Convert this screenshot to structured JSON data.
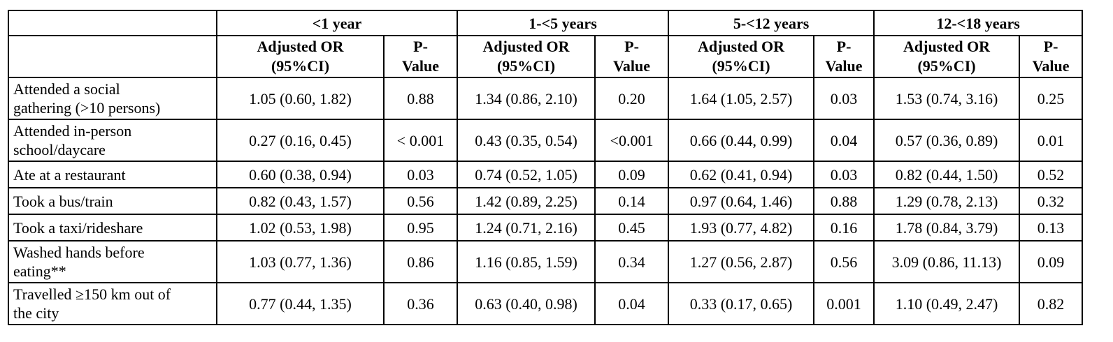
{
  "age_groups": [
    {
      "label": "<1 year"
    },
    {
      "label": "1-<5 years"
    },
    {
      "label": "5-<12 years"
    },
    {
      "label": "12-<18 years"
    }
  ],
  "subheaders": {
    "or_line1": "Adjusted OR",
    "or_line2": "(95%CI)",
    "p_line1": "P-",
    "p_line2": "Value"
  },
  "rows": [
    {
      "label_line1": "Attended a social",
      "label_line2": "gathering (>10 persons)",
      "cells": [
        {
          "or": "1.05 (0.60, 1.82)",
          "p": "0.88"
        },
        {
          "or": "1.34 (0.86, 2.10)",
          "p": "0.20"
        },
        {
          "or": "1.64 (1.05, 2.57)",
          "p": "0.03"
        },
        {
          "or": "1.53 (0.74, 3.16)",
          "p": "0.25"
        }
      ]
    },
    {
      "label_line1": "Attended in-person",
      "label_line2": "school/daycare",
      "cells": [
        {
          "or": "0.27 (0.16, 0.45)",
          "p": "< 0.001"
        },
        {
          "or": "0.43 (0.35, 0.54)",
          "p": "<0.001"
        },
        {
          "or": "0.66 (0.44, 0.99)",
          "p": "0.04"
        },
        {
          "or": "0.57 (0.36, 0.89)",
          "p": "0.01"
        }
      ]
    },
    {
      "label_line1": "Ate at a restaurant",
      "label_line2": "",
      "cells": [
        {
          "or": "0.60 (0.38, 0.94)",
          "p": "0.03"
        },
        {
          "or": "0.74 (0.52, 1.05)",
          "p": "0.09"
        },
        {
          "or": "0.62 (0.41, 0.94)",
          "p": "0.03"
        },
        {
          "or": "0.82 (0.44, 1.50)",
          "p": "0.52"
        }
      ]
    },
    {
      "label_line1": "Took a bus/train",
      "label_line2": "",
      "cells": [
        {
          "or": "0.82 (0.43, 1.57)",
          "p": "0.56"
        },
        {
          "or": "1.42 (0.89, 2.25)",
          "p": "0.14"
        },
        {
          "or": "0.97 (0.64, 1.46)",
          "p": "0.88"
        },
        {
          "or": "1.29 (0.78, 2.13)",
          "p": "0.32"
        }
      ]
    },
    {
      "label_line1": "Took a taxi/rideshare",
      "label_line2": "",
      "cells": [
        {
          "or": "1.02 (0.53, 1.98)",
          "p": "0.95"
        },
        {
          "or": "1.24 (0.71, 2.16)",
          "p": "0.45"
        },
        {
          "or": "1.93 (0.77, 4.82)",
          "p": "0.16"
        },
        {
          "or": "1.78 (0.84, 3.79)",
          "p": "0.13"
        }
      ]
    },
    {
      "label_line1": "Washed hands before",
      "label_line2": "eating**",
      "cells": [
        {
          "or": "1.03 (0.77, 1.36)",
          "p": "0.86"
        },
        {
          "or": "1.16 (0.85, 1.59)",
          "p": "0.34"
        },
        {
          "or": "1.27 (0.56, 2.87)",
          "p": "0.56"
        },
        {
          "or": "3.09 (0.86, 11.13)",
          "p": "0.09"
        }
      ]
    },
    {
      "label_line1": "Travelled ≥150 km out of",
      "label_line2": "the city",
      "cells": [
        {
          "or": "0.77 (0.44, 1.35)",
          "p": "0.36"
        },
        {
          "or": "0.63 (0.40, 0.98)",
          "p": "0.04"
        },
        {
          "or": "0.33 (0.17, 0.65)",
          "p": "0.001"
        },
        {
          "or": "1.10 (0.49, 2.47)",
          "p": "0.82"
        }
      ]
    }
  ]
}
